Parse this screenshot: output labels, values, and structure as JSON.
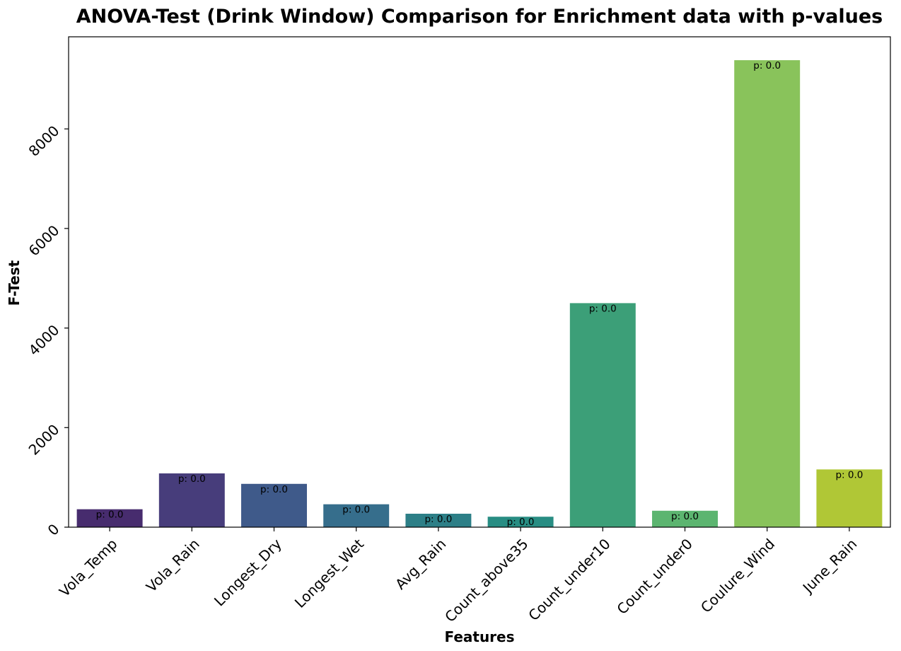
{
  "chart_data": {
    "type": "bar",
    "title": "ANOVA-Test (Drink Window) Comparison for Enrichment data with p-values",
    "xlabel": "Features",
    "ylabel": "F-Test",
    "categories": [
      "Vola_Temp",
      "Vola_Rain",
      "Longest_Dry",
      "Longest_Wet",
      "Avg_Rain",
      "Count_above35",
      "Count_under10",
      "Count_under0",
      "Coulure_Wind",
      "June_Rain"
    ],
    "values": [
      360,
      1080,
      870,
      460,
      270,
      210,
      4500,
      330,
      9380,
      1160
    ],
    "bar_labels": [
      "p: 0.0",
      "p: 0.0",
      "p: 0.0",
      "p: 0.0",
      "p: 0.0",
      "p: 0.0",
      "p: 0.0",
      "p: 0.0",
      "p: 0.0",
      "p: 0.0"
    ],
    "colors": [
      "#472c6e",
      "#473d7b",
      "#3f5a8a",
      "#366e8c",
      "#2d7f87",
      "#288d83",
      "#3c9f78",
      "#5cb570",
      "#89c35b",
      "#b0c736"
    ],
    "yticks": [
      0,
      2000,
      4000,
      6000,
      8000
    ],
    "ylim": [
      0,
      9850
    ],
    "grid": false,
    "legend": "none"
  }
}
